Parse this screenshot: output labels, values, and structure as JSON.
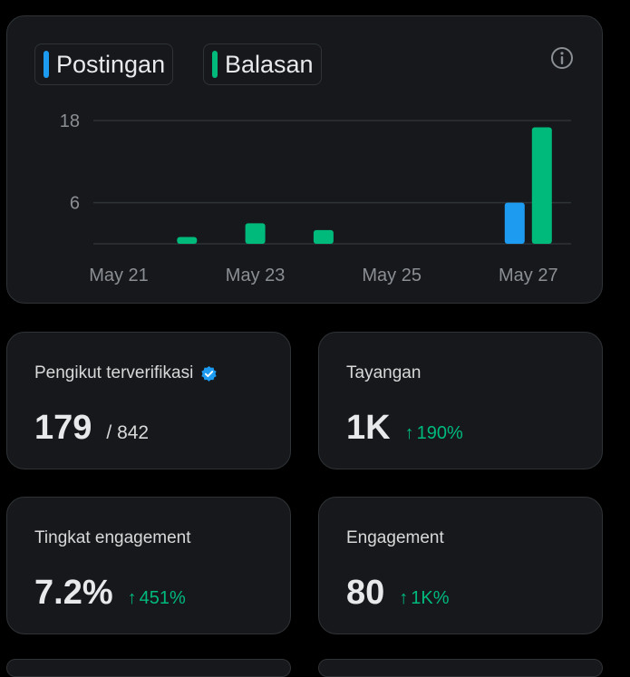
{
  "colors": {
    "postingan": "#1d9bf0",
    "balasan": "#00ba7c",
    "grid": "#2f3336",
    "axis_text": "#8b8f93",
    "positive_change": "#00ba7c"
  },
  "chart_data": {
    "type": "bar",
    "legend_position": "top-left",
    "grid": true,
    "x": [
      "May 21",
      "May 22",
      "May 23",
      "May 24",
      "May 25",
      "May 26",
      "May 27"
    ],
    "x_tick_labels": [
      "May 21",
      "May 23",
      "May 25",
      "May 27"
    ],
    "y_ticks": [
      6,
      18
    ],
    "ylim": [
      0,
      18
    ],
    "series": [
      {
        "name": "Postingan",
        "values": [
          0,
          0,
          0,
          0,
          0,
          0,
          6
        ]
      },
      {
        "name": "Balasan",
        "values": [
          0,
          1,
          3,
          2,
          0,
          0,
          17
        ]
      }
    ]
  },
  "stats": {
    "verified": {
      "title": "Pengikut terverifikasi",
      "value": "179",
      "sub": "/ 842",
      "icon": "verified-badge-icon"
    },
    "views": {
      "title": "Tayangan",
      "value": "1K",
      "change": "190%",
      "arrow": "↑"
    },
    "rate": {
      "title": "Tingkat engagement",
      "value": "7.2%",
      "change": "451%",
      "arrow": "↑"
    },
    "engagement": {
      "title": "Engagement",
      "value": "80",
      "change": "1K%",
      "arrow": "↑"
    }
  }
}
